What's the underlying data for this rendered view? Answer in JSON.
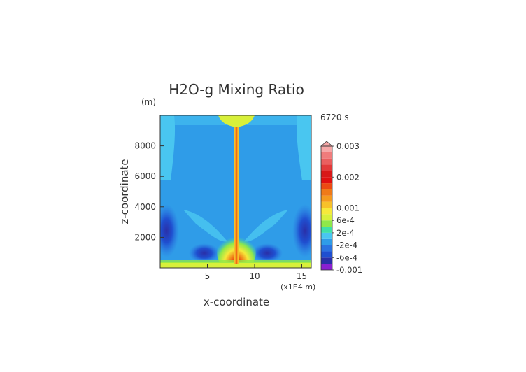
{
  "chart_data": {
    "type": "heatmap",
    "title": "H2O-g Mixing Ratio",
    "xlabel": "x-coordinate",
    "ylabel": "z-coordinate",
    "x_unit": "(x1E4 m)",
    "y_unit": "(m)",
    "time_label": "6720 s",
    "xlim": [
      0,
      16
    ],
    "ylim": [
      0,
      10000
    ],
    "x_ticks": [
      5,
      10,
      15
    ],
    "x_tick_labels": [
      "5",
      "10",
      "15"
    ],
    "y_ticks": [
      2000,
      4000,
      6000,
      8000
    ],
    "y_tick_labels": [
      "2000",
      "4000",
      "6000",
      "8000"
    ],
    "colorbar": {
      "levels": [
        -0.001,
        -0.0008,
        -0.0006,
        -0.0004,
        -0.0002,
        0,
        0.0002,
        0.0004,
        0.0006,
        0.0008,
        0.001,
        0.0012,
        0.0014,
        0.0016,
        0.0018,
        0.002,
        0.0022,
        0.0024,
        0.0026,
        0.0028,
        0.003
      ],
      "colors": [
        "#8a1fd1",
        "#2a2fa8",
        "#1f4fd0",
        "#2a72e0",
        "#2f9ce8",
        "#49c6f0",
        "#3fe0a8",
        "#8fe84a",
        "#d8f03a",
        "#f6e93a",
        "#f7c12a",
        "#f59a1e",
        "#f07a18",
        "#ec4a12",
        "#e01010",
        "#d81818",
        "#e23a3a",
        "#ea5f5f",
        "#f07c7c",
        "#f6a8a8"
      ],
      "tick_values": [
        0.003,
        0.002,
        0.001,
        0.0006,
        0.0002,
        -0.0002,
        -0.0006,
        -0.001
      ],
      "tick_labels": [
        "0.003",
        "0.002",
        "0.001",
        "6e-4",
        "2e-4",
        "-2e-4",
        "-6e-4",
        "-0.001"
      ]
    },
    "field_features": [
      {
        "feature": "background",
        "value": -0.0003
      },
      {
        "feature": "upper-corner",
        "x": [
          0,
          1.5
        ],
        "z": [
          5800,
          10000
        ],
        "value": 0.0001
      },
      {
        "feature": "upper-corner",
        "x": [
          14.5,
          16
        ],
        "z": [
          5800,
          10000
        ],
        "value": 0.0001
      },
      {
        "feature": "plume-core",
        "x": 8.0,
        "z": [
          0,
          10000
        ],
        "value": 0.0011
      },
      {
        "feature": "anvil",
        "x": [
          6.5,
          9.5
        ],
        "z": [
          9500,
          10000
        ],
        "value": 0.0006
      },
      {
        "feature": "near-surface-layer",
        "z": [
          0,
          300
        ],
        "value": 0.0006
      },
      {
        "feature": "plume-base",
        "x": [
          7,
          9
        ],
        "z": [
          0,
          2500
        ],
        "value": 0.0022
      },
      {
        "feature": "dry-pocket",
        "x": [
          4,
          5.5
        ],
        "z": [
          300,
          900
        ],
        "value": -0.0007
      },
      {
        "feature": "dry-pocket",
        "x": [
          10.5,
          12
        ],
        "z": [
          300,
          900
        ],
        "value": -0.0007
      },
      {
        "feature": "side-lobe",
        "x": [
          0,
          1
        ],
        "z": [
          1200,
          4000
        ],
        "value": -0.0007
      },
      {
        "feature": "side-lobe",
        "x": [
          15,
          16
        ],
        "z": [
          1200,
          4000
        ],
        "value": -0.0007
      }
    ]
  }
}
